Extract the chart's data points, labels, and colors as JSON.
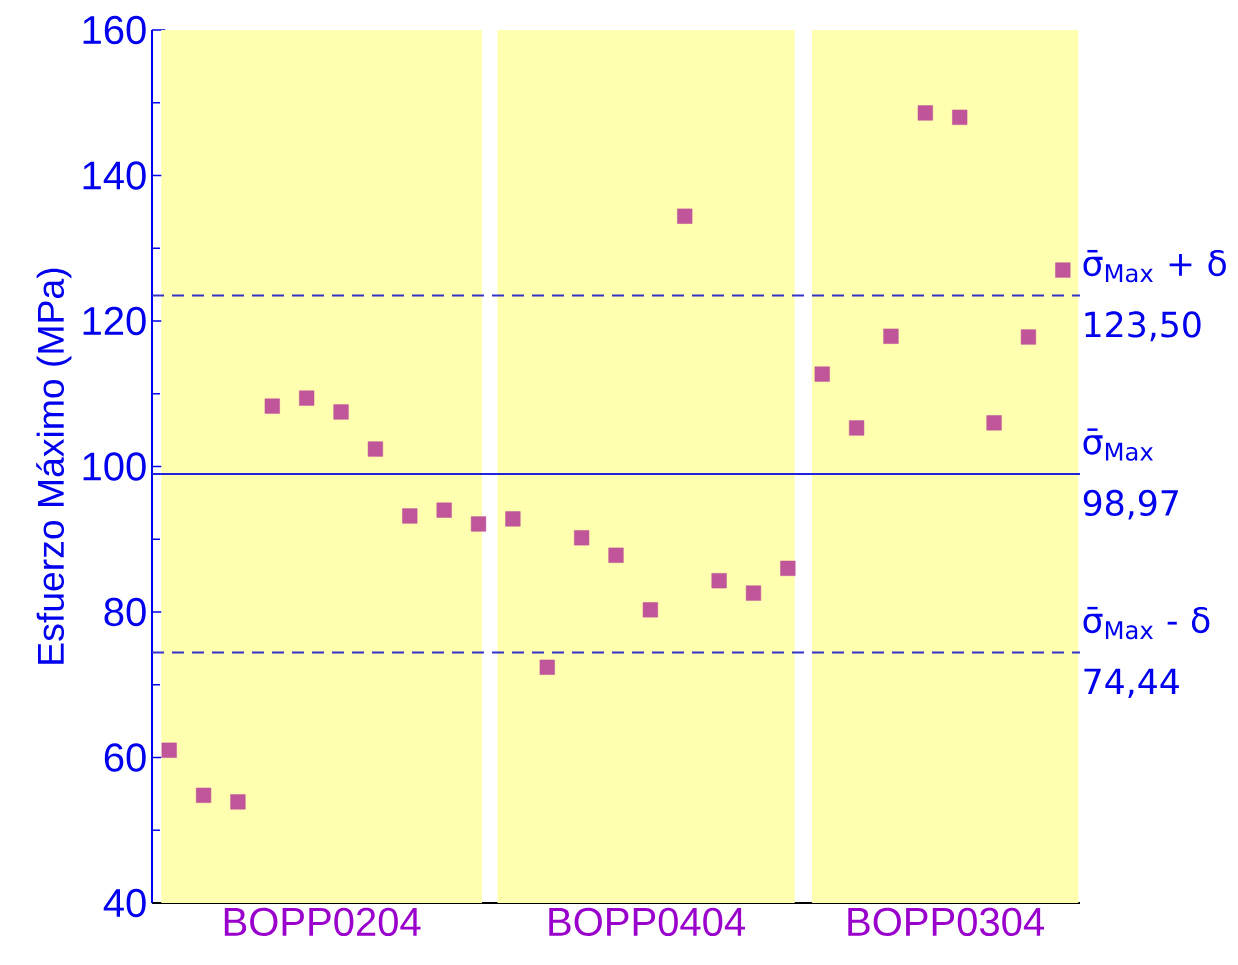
{
  "chart_data": {
    "type": "scatter",
    "ylabel": "Esfuerzo Máximo (MPa)",
    "categories": [
      null,
      null,
      null,
      null,
      null,
      null,
      null,
      null,
      null,
      null,
      null,
      null,
      null,
      null,
      null,
      null,
      null,
      null,
      null,
      null,
      null,
      null,
      null,
      null,
      null,
      null,
      null
    ],
    "annotations": [
      "BOPP0204",
      "BOPP0404",
      "BOPP0304"
    ],
    "series": [
      {
        "color": "#c0559a",
        "values": [
          61.0,
          54.8,
          53.9,
          108.3,
          109.4,
          107.5,
          102.4,
          93.2,
          94.0,
          92.1,
          92.8,
          72.4,
          90.2,
          87.8,
          80.3,
          134.4,
          84.3,
          82.6,
          86.0,
          112.7,
          105.3,
          117.9,
          148.6,
          148.0,
          106.0,
          117.8,
          127.0
        ]
      }
    ],
    "ylim": [
      40,
      160
    ],
    "yticks": [
      40,
      60,
      80,
      100,
      120,
      140,
      160
    ],
    "tick_labels": "y",
    "marker": "square",
    "grid": false,
    "ref_lines": [
      {
        "axis": "y",
        "value": 123.5,
        "label": "σ̄$_{Max}$ + δ 123,50",
        "color": "#3333cc",
        "line_style": "dashed"
      },
      {
        "axis": "y",
        "value": 98.97,
        "label": "σ̄$_{Max}$ 98,97",
        "color": "#2222dd",
        "line_style": "solid"
      },
      {
        "axis": "y",
        "value": 74.44,
        "label": "σ̄$_{Max}$ - δ 74,44",
        "color": "#3333cc",
        "line_style": "dashed"
      }
    ]
  }
}
